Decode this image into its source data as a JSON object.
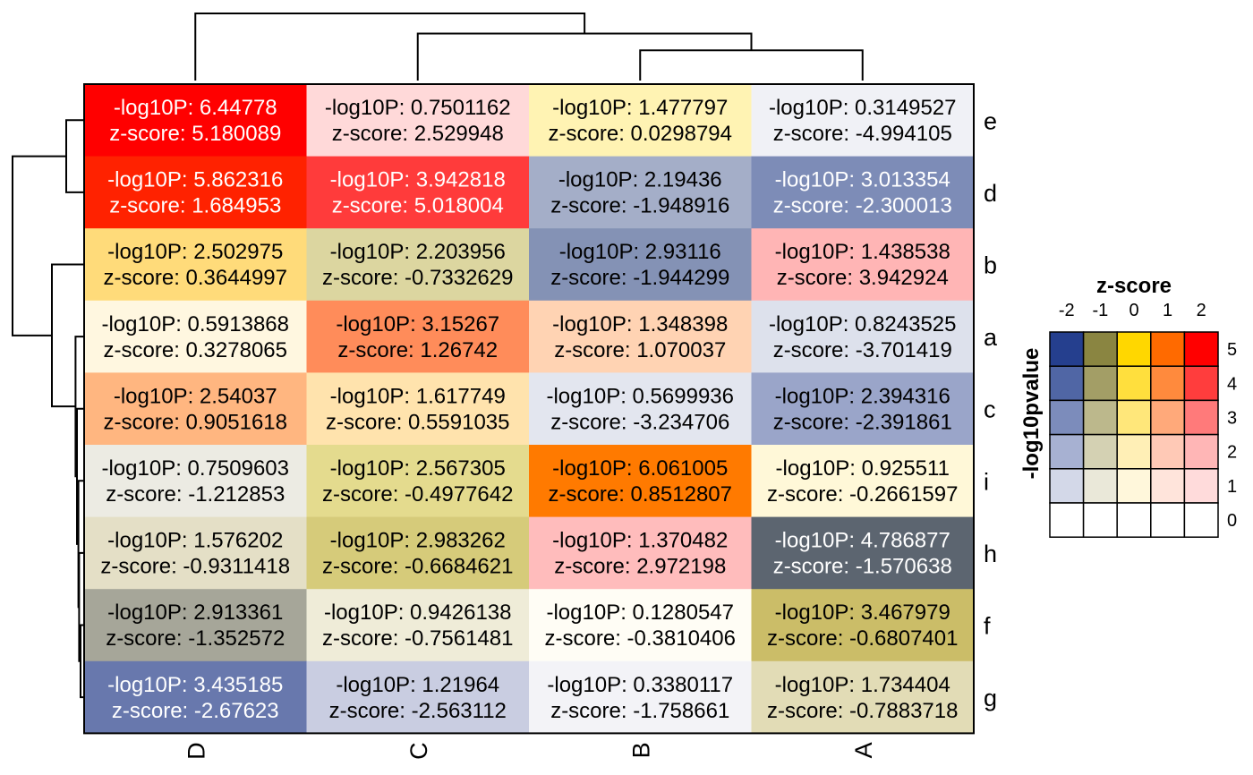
{
  "chart_data": {
    "type": "heatmap",
    "rows": [
      "e",
      "d",
      "b",
      "a",
      "c",
      "i",
      "h",
      "f",
      "g"
    ],
    "columns": [
      "D",
      "C",
      "B",
      "A"
    ],
    "cell_prefix_p": "-log10P: ",
    "cell_prefix_z": "z-score: ",
    "cells": [
      [
        {
          "p": "6.44778",
          "z": "5.180089",
          "color": "#ff0000",
          "text_color": "#ffffff"
        },
        {
          "p": "0.7501162",
          "z": "2.529948",
          "color": "#ffd9d9",
          "text_color": "#000000"
        },
        {
          "p": "1.477797",
          "z": "0.0298794",
          "color": "#fff3b3",
          "text_color": "#000000"
        },
        {
          "p": "0.3149527",
          "z": "-4.994105",
          "color": "#f0f1f6",
          "text_color": "#000000"
        }
      ],
      [
        {
          "p": "5.862316",
          "z": "1.684953",
          "color": "#ff2200",
          "text_color": "#ffffff"
        },
        {
          "p": "3.942818",
          "z": "5.018004",
          "color": "#ff3b3b",
          "text_color": "#ffffff"
        },
        {
          "p": "2.19436",
          "z": "-1.948916",
          "color": "#a4aec8",
          "text_color": "#000000"
        },
        {
          "p": "3.013354",
          "z": "-2.300013",
          "color": "#7d8cb7",
          "text_color": "#ffffff"
        }
      ],
      [
        {
          "p": "2.502975",
          "z": "0.3644997",
          "color": "#ffdb7a",
          "text_color": "#000000"
        },
        {
          "p": "2.203956",
          "z": "-0.7332629",
          "color": "#dcd6a0",
          "text_color": "#000000"
        },
        {
          "p": "2.93116",
          "z": "-1.944299",
          "color": "#8492b5",
          "text_color": "#000000"
        },
        {
          "p": "1.438538",
          "z": "3.942924",
          "color": "#ffb5b5",
          "text_color": "#000000"
        }
      ],
      [
        {
          "p": "0.5913868",
          "z": "0.3278065",
          "color": "#fff7e0",
          "text_color": "#000000"
        },
        {
          "p": "3.15267",
          "z": "1.26742",
          "color": "#ff8c5a",
          "text_color": "#000000"
        },
        {
          "p": "1.348398",
          "z": "1.070037",
          "color": "#ffd3b3",
          "text_color": "#000000"
        },
        {
          "p": "0.8243525",
          "z": "-3.701419",
          "color": "#dde1ec",
          "text_color": "#000000"
        }
      ],
      [
        {
          "p": "2.54037",
          "z": "0.9051618",
          "color": "#ffb680",
          "text_color": "#000000"
        },
        {
          "p": "1.617749",
          "z": "0.5591035",
          "color": "#ffe3ad",
          "text_color": "#000000"
        },
        {
          "p": "0.5699936",
          "z": "-3.234706",
          "color": "#e3e6ef",
          "text_color": "#000000"
        },
        {
          "p": "2.394316",
          "z": "-2.391861",
          "color": "#9aa5c9",
          "text_color": "#000000"
        }
      ],
      [
        {
          "p": "0.7509603",
          "z": "-1.212853",
          "color": "#ecebe3",
          "text_color": "#000000"
        },
        {
          "p": "2.567305",
          "z": "-0.4977642",
          "color": "#e4db8e",
          "text_color": "#000000"
        },
        {
          "p": "6.061005",
          "z": "0.8512807",
          "color": "#ff7a00",
          "text_color": "#000000"
        },
        {
          "p": "0.925511",
          "z": "-0.2661597",
          "color": "#fff8d8",
          "text_color": "#000000"
        }
      ],
      [
        {
          "p": "1.576202",
          "z": "-0.9311418",
          "color": "#e4dfc6",
          "text_color": "#000000"
        },
        {
          "p": "2.983262",
          "z": "-0.6684621",
          "color": "#d6cb7a",
          "text_color": "#000000"
        },
        {
          "p": "1.370482",
          "z": "2.972198",
          "color": "#ffbcbc",
          "text_color": "#000000"
        },
        {
          "p": "4.786877",
          "z": "-1.570638",
          "color": "#5c6570",
          "text_color": "#ffffff"
        }
      ],
      [
        {
          "p": "2.913361",
          "z": "-1.352572",
          "color": "#a6a699",
          "text_color": "#000000"
        },
        {
          "p": "0.9426138",
          "z": "-0.7561481",
          "color": "#efecd8",
          "text_color": "#000000"
        },
        {
          "p": "0.1280547",
          "z": "-0.3810406",
          "color": "#fffdf5",
          "text_color": "#000000"
        },
        {
          "p": "3.467979",
          "z": "-0.6807401",
          "color": "#cbbd68",
          "text_color": "#000000"
        }
      ],
      [
        {
          "p": "3.435185",
          "z": "-2.67623",
          "color": "#6878ad",
          "text_color": "#ffffff"
        },
        {
          "p": "1.21964",
          "z": "-2.563112",
          "color": "#c9cde1",
          "text_color": "#000000"
        },
        {
          "p": "0.3380117",
          "z": "-1.758661",
          "color": "#f3f3f7",
          "text_color": "#000000"
        },
        {
          "p": "1.734404",
          "z": "-0.7883718",
          "color": "#e2dcb6",
          "text_color": "#000000"
        }
      ]
    ],
    "legend": {
      "x_title": "z-score",
      "y_title": "-log10pvalue",
      "x_ticks": [
        "-2",
        "-1",
        "0",
        "1",
        "2"
      ],
      "y_ticks": [
        "5",
        "4",
        "3",
        "2",
        "1",
        "0"
      ],
      "grid_colors": [
        [
          "#253f8e",
          "#8a8541",
          "#ffd700",
          "#ff6a00",
          "#ff0000"
        ],
        [
          "#5066a5",
          "#a39e66",
          "#ffdf3d",
          "#ff8a3d",
          "#ff3d3d"
        ],
        [
          "#7c8cbb",
          "#bcb88c",
          "#ffe77a",
          "#ffa97a",
          "#ff7a7a"
        ],
        [
          "#a7b1d2",
          "#d4d1b3",
          "#ffefb6",
          "#ffc9b6",
          "#ffb6b6"
        ],
        [
          "#d3d8e8",
          "#eae8d9",
          "#fff7db",
          "#ffe4db",
          "#ffdbdb"
        ],
        [
          "#ffffff",
          "#ffffff",
          "#ffffff",
          "#ffffff",
          "#ffffff"
        ]
      ]
    },
    "row_dendrogram": {
      "leaf_order": [
        "e",
        "d",
        "b",
        "a",
        "c",
        "i",
        "h",
        "f",
        "g"
      ],
      "merges": [
        {
          "left": "leaf:0",
          "right": "leaf:1",
          "height": 0.25
        },
        {
          "left": "leaf:7",
          "right": "leaf:8",
          "height": 0.05
        },
        {
          "left": "leaf:6",
          "right": "node:1",
          "height": 0.07
        },
        {
          "left": "leaf:5",
          "right": "node:2",
          "height": 0.08
        },
        {
          "left": "leaf:4",
          "right": "node:3",
          "height": 0.1
        },
        {
          "left": "leaf:3",
          "right": "node:4",
          "height": 0.12
        },
        {
          "left": "leaf:2",
          "right": "node:5",
          "height": 0.45
        },
        {
          "left": "node:0",
          "right": "node:6",
          "height": 1.0
        }
      ]
    },
    "column_dendrogram": {
      "leaf_order": [
        "D",
        "C",
        "B",
        "A"
      ],
      "merges": [
        {
          "left": "leaf:2",
          "right": "leaf:3",
          "height": 0.45
        },
        {
          "left": "leaf:1",
          "right": "node:0",
          "height": 0.7
        },
        {
          "left": "leaf:0",
          "right": "node:1",
          "height": 1.0
        }
      ]
    }
  }
}
